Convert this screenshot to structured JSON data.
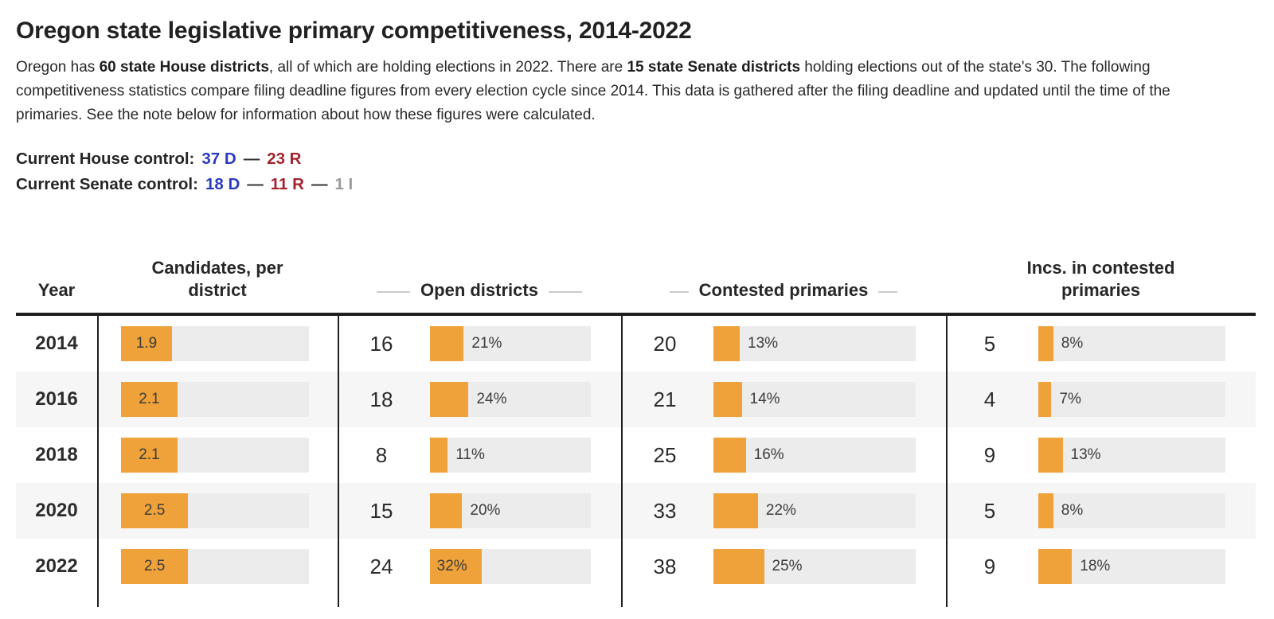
{
  "page": {
    "title": "Oregon state legislative primary competitiveness, 2014-2022",
    "intro_segments": [
      {
        "text": "Oregon has ",
        "bold": false
      },
      {
        "text": "60 state House districts",
        "bold": true
      },
      {
        "text": ", all of which are holding elections in 2022. There are ",
        "bold": false
      },
      {
        "text": "15 state Senate districts",
        "bold": true
      },
      {
        "text": " holding elections out of the state's 30. The following competitiveness statistics compare filing deadline figures from every election cycle since 2014. This data is gathered after the filing deadline and updated until the time of the primaries. See the note below for information about how these figures were calculated.",
        "bold": false
      }
    ],
    "control": {
      "house": {
        "label": "Current House control:",
        "parts": [
          {
            "text": "37 D",
            "color": "blue"
          },
          {
            "text": "—",
            "color": "dark"
          },
          {
            "text": "23 R",
            "color": "red"
          }
        ]
      },
      "senate": {
        "label": "Current Senate control:",
        "parts": [
          {
            "text": "18 D",
            "color": "blue"
          },
          {
            "text": "—",
            "color": "dark"
          },
          {
            "text": "11 R",
            "color": "red"
          },
          {
            "text": "—",
            "color": "dark"
          },
          {
            "text": "1 I",
            "color": "gray"
          }
        ]
      }
    }
  },
  "colors": {
    "bar_orange": "#efa23a",
    "bar_track": "#ececec",
    "dem_blue": "#2a3bbf",
    "rep_red": "#a6232e",
    "ind_gray": "#9a9a9a",
    "row_stripe": "#f6f6f6"
  },
  "table": {
    "columns": [
      {
        "label": "Year",
        "dashes": false
      },
      {
        "label": "Candidates, per district",
        "dashes": false
      },
      {
        "label": "Open districts",
        "dashes": true
      },
      {
        "label": "Contested primaries",
        "dashes": true
      },
      {
        "label": "Incs. in contested primaries",
        "dashes": false
      }
    ],
    "rows": [
      {
        "year": "2014",
        "striped": false,
        "candidates": {
          "value": "1.9",
          "bar_pct": 27.1
        },
        "open": {
          "count": "16",
          "pct": 21
        },
        "contested": {
          "count": "20",
          "pct": 13
        },
        "incs": {
          "count": "5",
          "pct": 8
        }
      },
      {
        "year": "2016",
        "striped": true,
        "candidates": {
          "value": "2.1",
          "bar_pct": 30
        },
        "open": {
          "count": "18",
          "pct": 24
        },
        "contested": {
          "count": "21",
          "pct": 14
        },
        "incs": {
          "count": "4",
          "pct": 7
        }
      },
      {
        "year": "2018",
        "striped": false,
        "candidates": {
          "value": "2.1",
          "bar_pct": 30
        },
        "open": {
          "count": "8",
          "pct": 11
        },
        "contested": {
          "count": "25",
          "pct": 16
        },
        "incs": {
          "count": "9",
          "pct": 13
        }
      },
      {
        "year": "2020",
        "striped": true,
        "candidates": {
          "value": "2.5",
          "bar_pct": 35.7
        },
        "open": {
          "count": "15",
          "pct": 20
        },
        "contested": {
          "count": "33",
          "pct": 22
        },
        "incs": {
          "count": "5",
          "pct": 8
        }
      },
      {
        "year": "2022",
        "striped": false,
        "candidates": {
          "value": "2.5",
          "bar_pct": 35.7
        },
        "open": {
          "count": "24",
          "pct": 32,
          "label_inside": true
        },
        "contested": {
          "count": "38",
          "pct": 25
        },
        "incs": {
          "count": "9",
          "pct": 18
        }
      }
    ]
  },
  "chart_data": {
    "type": "table",
    "title": "Oregon state legislative primary competitiveness, 2014-2022",
    "categories": [
      "2014",
      "2016",
      "2018",
      "2020",
      "2022"
    ],
    "series": [
      {
        "name": "Candidates, per district",
        "values": [
          1.9,
          2.1,
          2.1,
          2.5,
          2.5
        ]
      },
      {
        "name": "Open districts (count)",
        "values": [
          16,
          18,
          8,
          15,
          24
        ]
      },
      {
        "name": "Open districts (%)",
        "values": [
          21,
          24,
          11,
          20,
          32
        ]
      },
      {
        "name": "Contested primaries (count)",
        "values": [
          20,
          21,
          25,
          33,
          38
        ]
      },
      {
        "name": "Contested primaries (%)",
        "values": [
          13,
          14,
          16,
          22,
          25
        ]
      },
      {
        "name": "Incs. in contested primaries (count)",
        "values": [
          5,
          4,
          9,
          5,
          9
        ]
      },
      {
        "name": "Incs. in contested primaries (%)",
        "values": [
          8,
          7,
          13,
          8,
          18
        ]
      }
    ],
    "layout": {
      "bar_color": "#efa23a",
      "track_color": "#ececec",
      "bars": "horizontal, percent of track; candidates column scaled to max 7"
    }
  }
}
